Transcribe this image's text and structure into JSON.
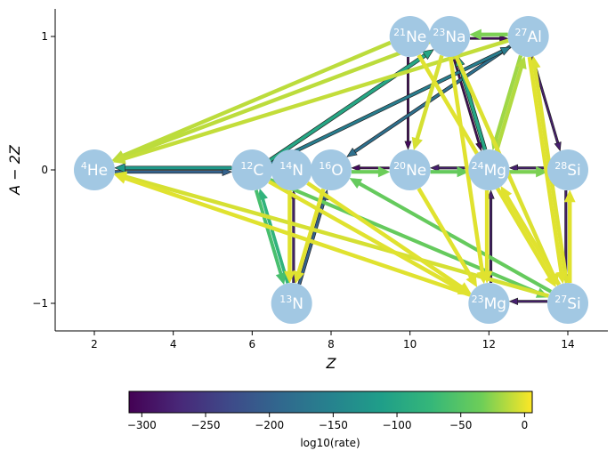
{
  "chart_data": {
    "type": "network",
    "xlabel": "Z",
    "ylabel": "A − 2Z",
    "xlim": [
      1,
      15
    ],
    "ylim": [
      -1.2,
      1.2
    ],
    "xticks": [
      2,
      4,
      6,
      8,
      10,
      12,
      14
    ],
    "yticks": [
      -1,
      0,
      1
    ],
    "colorbar": {
      "label": "log10(rate)",
      "colormap": "viridis",
      "range": [
        -310,
        6
      ],
      "ticks": [
        -300,
        -250,
        -200,
        -150,
        -100,
        -50,
        0
      ]
    },
    "nodes": [
      {
        "id": "he4",
        "element": "He",
        "mass": "4",
        "Z": 2,
        "N_minus_Z": 0
      },
      {
        "id": "c12",
        "element": "C",
        "mass": "12",
        "Z": 6,
        "N_minus_Z": 0
      },
      {
        "id": "n13",
        "element": "N",
        "mass": "13",
        "Z": 7,
        "N_minus_Z": -1
      },
      {
        "id": "n14",
        "element": "N",
        "mass": "14",
        "Z": 7,
        "N_minus_Z": 0
      },
      {
        "id": "o16",
        "element": "O",
        "mass": "16",
        "Z": 8,
        "N_minus_Z": 0
      },
      {
        "id": "ne20",
        "element": "Ne",
        "mass": "20",
        "Z": 10,
        "N_minus_Z": 0
      },
      {
        "id": "ne21",
        "element": "Ne",
        "mass": "21",
        "Z": 10,
        "N_minus_Z": 1
      },
      {
        "id": "na23",
        "element": "Na",
        "mass": "23",
        "Z": 11,
        "N_minus_Z": 1
      },
      {
        "id": "mg23",
        "element": "Mg",
        "mass": "23",
        "Z": 12,
        "N_minus_Z": -1
      },
      {
        "id": "mg24",
        "element": "Mg",
        "mass": "24",
        "Z": 12,
        "N_minus_Z": 0
      },
      {
        "id": "al27",
        "element": "Al",
        "mass": "27",
        "Z": 13,
        "N_minus_Z": 1
      },
      {
        "id": "si27",
        "element": "Si",
        "mass": "27",
        "Z": 14,
        "N_minus_Z": -1
      },
      {
        "id": "si28",
        "element": "Si",
        "mass": "28",
        "Z": 14,
        "N_minus_Z": 0
      }
    ],
    "edges": [
      {
        "from": "ne21",
        "to": "he4",
        "log10_rate": -12
      },
      {
        "from": "na23",
        "to": "he4",
        "log10_rate": -12
      },
      {
        "from": "al27",
        "to": "he4",
        "log10_rate": -10
      },
      {
        "from": "si27",
        "to": "he4",
        "log10_rate": -5
      },
      {
        "from": "mg23",
        "to": "he4",
        "log10_rate": -2
      },
      {
        "from": "he4",
        "to": "c12",
        "log10_rate": -200
      },
      {
        "from": "c12",
        "to": "he4",
        "log10_rate": -120
      },
      {
        "from": "c12",
        "to": "n13",
        "log10_rate": -60
      },
      {
        "from": "n13",
        "to": "c12",
        "log10_rate": -80
      },
      {
        "from": "n13",
        "to": "n14",
        "log10_rate": -280
      },
      {
        "from": "n14",
        "to": "n13",
        "log10_rate": -2
      },
      {
        "from": "n13",
        "to": "o16",
        "log10_rate": -200
      },
      {
        "from": "o16",
        "to": "n13",
        "log10_rate": -2
      },
      {
        "from": "n14",
        "to": "mg23",
        "log10_rate": -2
      },
      {
        "from": "c12",
        "to": "mg23",
        "log10_rate": -2
      },
      {
        "from": "c12",
        "to": "al27",
        "log10_rate": -160
      },
      {
        "from": "c12",
        "to": "na23",
        "log10_rate": -100
      },
      {
        "from": "c12",
        "to": "si27",
        "log10_rate": -40
      },
      {
        "from": "si27",
        "to": "o16",
        "log10_rate": -40
      },
      {
        "from": "al27",
        "to": "o16",
        "log10_rate": -180
      },
      {
        "from": "ne20",
        "to": "o16",
        "log10_rate": -300
      },
      {
        "from": "o16",
        "to": "ne20",
        "log10_rate": -35
      },
      {
        "from": "mg24",
        "to": "ne20",
        "log10_rate": -280
      },
      {
        "from": "ne20",
        "to": "mg24",
        "log10_rate": -40
      },
      {
        "from": "ne21",
        "to": "ne20",
        "log10_rate": -300
      },
      {
        "from": "na23",
        "to": "ne20",
        "log10_rate": -5
      },
      {
        "from": "ne20",
        "to": "mg23",
        "log10_rate": -2
      },
      {
        "from": "na23",
        "to": "al27",
        "log10_rate": -300
      },
      {
        "from": "al27",
        "to": "na23",
        "log10_rate": -30
      },
      {
        "from": "na23",
        "to": "mg24",
        "log10_rate": -300
      },
      {
        "from": "mg24",
        "to": "na23",
        "log10_rate": -100
      },
      {
        "from": "na23",
        "to": "mg23",
        "log10_rate": -2
      },
      {
        "from": "al27",
        "to": "mg24",
        "log10_rate": -20
      },
      {
        "from": "mg24",
        "to": "al27",
        "log10_rate": -15
      },
      {
        "from": "si28",
        "to": "mg24",
        "log10_rate": -280
      },
      {
        "from": "mg24",
        "to": "si28",
        "log10_rate": -30
      },
      {
        "from": "mg23",
        "to": "mg24",
        "log10_rate": -280
      },
      {
        "from": "mg24",
        "to": "mg23",
        "log10_rate": -2
      },
      {
        "from": "al27",
        "to": "si28",
        "log10_rate": -280
      },
      {
        "from": "si27",
        "to": "al27",
        "log10_rate": -3
      },
      {
        "from": "al27",
        "to": "si27",
        "log10_rate": -2
      },
      {
        "from": "si28",
        "to": "si27",
        "log10_rate": -280
      },
      {
        "from": "si27",
        "to": "si28",
        "log10_rate": -2
      },
      {
        "from": "si27",
        "to": "mg23",
        "log10_rate": -280
      },
      {
        "from": "si27",
        "to": "mg24",
        "log10_rate": -2
      },
      {
        "from": "ne21",
        "to": "si27",
        "log10_rate": -2
      },
      {
        "from": "na23",
        "to": "si27",
        "log10_rate": -3
      }
    ]
  }
}
